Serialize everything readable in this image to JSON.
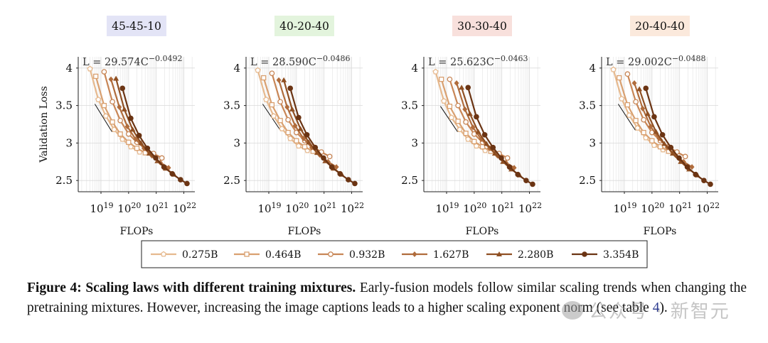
{
  "chart_data": {
    "type": "line",
    "xlabel": "FLOPs",
    "ylabel": "Validation Loss",
    "xscale": "log",
    "xlim": [
      1.5e+18,
      2.5e+22
    ],
    "ylim": [
      2.35,
      4.15
    ],
    "xticks": [
      {
        "value": 1e+19,
        "base": "10",
        "exp": "19"
      },
      {
        "value": 1e+20,
        "base": "10",
        "exp": "20"
      },
      {
        "value": 1e+21,
        "base": "10",
        "exp": "21"
      },
      {
        "value": 1e+22,
        "base": "10",
        "exp": "22"
      }
    ],
    "yticks": [
      2.5,
      3,
      3.5,
      4
    ],
    "ytick_labels": [
      "2.5",
      "3",
      "3.5",
      "4"
    ],
    "grid": true,
    "legend": {
      "placement": "bottom-center",
      "entries": [
        {
          "name": "0.275B",
          "color": "#e6b98e",
          "marker": "pentagon"
        },
        {
          "name": "0.464B",
          "color": "#d9a070",
          "marker": "square"
        },
        {
          "name": "0.932B",
          "color": "#c88656",
          "marker": "circle"
        },
        {
          "name": "1.627B",
          "color": "#b06c3c",
          "marker": "diamond"
        },
        {
          "name": "2.280B",
          "color": "#8f4f22",
          "marker": "triangle"
        },
        {
          "name": "3.354B",
          "color": "#6b3413",
          "marker": "dot"
        }
      ]
    },
    "panels": [
      {
        "title": "45-45-10",
        "title_bg": "#e3e4f6",
        "law_prefix": "L = 29.574C",
        "law_exp": "−0.0492",
        "fit": {
          "x": [
            6e+18,
            2.5e+19
          ],
          "y": [
            3.52,
            3.15
          ]
        },
        "series": [
          {
            "x": [
              4e+18,
              8e+18,
              1.5e+19,
              3e+19,
              6e+19,
              1.2e+20,
              2.5e+20
            ],
            "y": [
              3.99,
              3.58,
              3.36,
              3.18,
              3.05,
              2.95,
              2.88
            ]
          },
          {
            "x": [
              6.5e+18,
              1.3e+19,
              2.6e+19,
              5e+19,
              1e+20,
              2e+20,
              4e+20
            ],
            "y": [
              3.89,
              3.5,
              3.28,
              3.12,
              3.01,
              2.93,
              2.87
            ]
          },
          {
            "x": [
              1.3e+19,
              2.6e+19,
              5e+19,
              1e+20,
              2e+20,
              4e+20,
              8e+20,
              1.6e+21
            ],
            "y": [
              3.95,
              3.55,
              3.3,
              3.12,
              3.01,
              2.93,
              2.86,
              2.8
            ]
          },
          {
            "x": [
              2.3e+19,
              4.6e+19,
              9e+19,
              1.8e+20,
              3.6e+20,
              7e+20,
              1.4e+21,
              2.8e+21
            ],
            "y": [
              3.85,
              3.48,
              3.22,
              3.05,
              2.93,
              2.83,
              2.74,
              2.67
            ]
          },
          {
            "x": [
              3.5e+19,
              7e+19,
              1.4e+20,
              2.8e+20,
              5.6e+20,
              1.1e+21,
              2.2e+21,
              4.4e+21
            ],
            "y": [
              3.86,
              3.45,
              3.18,
              3.0,
              2.86,
              2.76,
              2.66,
              2.58
            ]
          },
          {
            "x": [
              6e+19,
              1.2e+20,
              2.4e+20,
              4.8e+20,
              9.6e+20,
              1.9e+21,
              3.8e+21,
              7.6e+21,
              1.3e+22
            ],
            "y": [
              3.73,
              3.33,
              3.1,
              2.93,
              2.8,
              2.68,
              2.59,
              2.51,
              2.46
            ]
          }
        ]
      },
      {
        "title": "40-20-40",
        "title_bg": "#e3f4dd",
        "law_prefix": "L = 28.590C",
        "law_exp": "−0.0486",
        "fit": {
          "x": [
            6e+18,
            2.5e+19
          ],
          "y": [
            3.52,
            3.18
          ]
        },
        "series": [
          {
            "x": [
              4e+18,
              8e+18,
              1.5e+19,
              3e+19,
              6e+19,
              1.2e+20,
              2.5e+20
            ],
            "y": [
              3.97,
              3.58,
              3.36,
              3.19,
              3.06,
              2.96,
              2.9
            ]
          },
          {
            "x": [
              6.5e+18,
              1.3e+19,
              2.6e+19,
              5e+19,
              1e+20,
              2e+20,
              4e+20
            ],
            "y": [
              3.87,
              3.51,
              3.3,
              3.14,
              3.03,
              2.95,
              2.89
            ]
          },
          {
            "x": [
              1.3e+19,
              2.6e+19,
              5e+19,
              1e+20,
              2e+20,
              4e+20,
              8e+20,
              1.6e+21
            ],
            "y": [
              3.93,
              3.55,
              3.31,
              3.14,
              3.03,
              2.95,
              2.88,
              2.82
            ]
          },
          {
            "x": [
              2.3e+19,
              4.6e+19,
              9e+19,
              1.8e+20,
              3.6e+20,
              7e+20,
              1.4e+21,
              2.8e+21
            ],
            "y": [
              3.84,
              3.48,
              3.23,
              3.06,
              2.94,
              2.84,
              2.75,
              2.68
            ]
          },
          {
            "x": [
              3.5e+19,
              7e+19,
              1.4e+20,
              2.8e+20,
              5.6e+20,
              1.1e+21,
              2.2e+21,
              4.4e+21
            ],
            "y": [
              3.84,
              3.45,
              3.19,
              3.01,
              2.87,
              2.76,
              2.66,
              2.58
            ]
          },
          {
            "x": [
              6e+19,
              1.2e+20,
              2.4e+20,
              4.8e+20,
              9.6e+20,
              1.9e+21,
              3.8e+21,
              7.6e+21,
              1.3e+22
            ],
            "y": [
              3.73,
              3.34,
              3.11,
              2.94,
              2.8,
              2.68,
              2.59,
              2.51,
              2.46
            ]
          }
        ]
      },
      {
        "title": "30-30-40",
        "title_bg": "#f8e0dc",
        "law_prefix": "L = 25.623C",
        "law_exp": "−0.0463",
        "fit": {
          "x": [
            6e+18,
            2.5e+19
          ],
          "y": [
            3.49,
            3.15
          ]
        },
        "series": [
          {
            "x": [
              4e+18,
              8e+18,
              1.5e+19,
              3e+19,
              6e+19,
              1.2e+20,
              2.5e+20
            ],
            "y": [
              3.95,
              3.56,
              3.34,
              3.18,
              3.05,
              2.96,
              2.9
            ]
          },
          {
            "x": [
              6.5e+18,
              1.3e+19,
              2.6e+19,
              5e+19,
              1e+20,
              2e+20,
              4e+20
            ],
            "y": [
              3.85,
              3.49,
              3.29,
              3.13,
              3.02,
              2.95,
              2.89
            ]
          },
          {
            "x": [
              1.3e+19,
              2.6e+19,
              5e+19,
              1e+20,
              2e+20,
              4e+20,
              8e+20,
              1.6e+21
            ],
            "y": [
              3.85,
              3.5,
              3.28,
              3.12,
              3.01,
              2.93,
              2.86,
              2.8
            ]
          },
          {
            "x": [
              2.3e+19,
              4.6e+19,
              9e+19,
              1.8e+20,
              3.6e+20,
              7e+20,
              1.4e+21,
              2.8e+21
            ],
            "y": [
              3.8,
              3.45,
              3.21,
              3.05,
              2.93,
              2.83,
              2.74,
              2.67
            ]
          },
          {
            "x": [
              3.5e+19,
              7e+19,
              1.4e+20,
              2.8e+20,
              5.6e+20,
              1.1e+21,
              2.2e+21,
              4.4e+21
            ],
            "y": [
              3.74,
              3.39,
              3.15,
              2.99,
              2.86,
              2.75,
              2.65,
              2.57
            ]
          },
          {
            "x": [
              6e+19,
              1.2e+20,
              2.4e+20,
              4.8e+20,
              9.6e+20,
              1.9e+21,
              3.8e+21,
              7.6e+21,
              1.3e+22
            ],
            "y": [
              3.74,
              3.35,
              3.11,
              2.94,
              2.8,
              2.68,
              2.58,
              2.5,
              2.45
            ]
          }
        ]
      },
      {
        "title": "20-40-40",
        "title_bg": "#fbe9dc",
        "law_prefix": "L = 29.002C",
        "law_exp": "−0.0488",
        "fit": {
          "x": [
            6e+18,
            2.5e+19
          ],
          "y": [
            3.52,
            3.17
          ]
        },
        "series": [
          {
            "x": [
              4e+18,
              8e+18,
              1.5e+19,
              3e+19,
              6e+19,
              1.2e+20,
              2.5e+20
            ],
            "y": [
              3.98,
              3.59,
              3.37,
              3.2,
              3.07,
              2.97,
              2.91
            ]
          },
          {
            "x": [
              6.5e+18,
              1.3e+19,
              2.6e+19,
              5e+19,
              1e+20,
              2e+20,
              4e+20
            ],
            "y": [
              3.87,
              3.51,
              3.3,
              3.14,
              3.03,
              2.95,
              2.89
            ]
          },
          {
            "x": [
              1.3e+19,
              2.6e+19,
              5e+19,
              1e+20,
              2e+20,
              4e+20,
              8e+20,
              1.6e+21
            ],
            "y": [
              3.92,
              3.55,
              3.31,
              3.14,
              3.03,
              2.95,
              2.88,
              2.82
            ]
          },
          {
            "x": [
              2.3e+19,
              4.6e+19,
              9e+19,
              1.8e+20,
              3.6e+20,
              7e+20,
              1.4e+21,
              2.8e+21
            ],
            "y": [
              3.8,
              3.46,
              3.22,
              3.06,
              2.94,
              2.84,
              2.75,
              2.68
            ]
          },
          {
            "x": [
              3.5e+19,
              7e+19,
              1.4e+20,
              2.8e+20,
              5.6e+20,
              1.1e+21,
              2.2e+21,
              4.4e+21
            ],
            "y": [
              3.72,
              3.39,
              3.15,
              2.99,
              2.86,
              2.75,
              2.65,
              2.57
            ]
          },
          {
            "x": [
              6e+19,
              1.2e+20,
              2.4e+20,
              4.8e+20,
              9.6e+20,
              1.9e+21,
              3.8e+21,
              7.6e+21,
              1.3e+22
            ],
            "y": [
              3.73,
              3.35,
              3.11,
              2.94,
              2.8,
              2.68,
              2.58,
              2.5,
              2.45
            ]
          }
        ]
      }
    ]
  },
  "caption": {
    "label": "Figure 4: Scaling laws with different training mixtures.",
    "text_before_ref": " Early-fusion models follow similar scaling trends when changing the pretraining mixtures. However, increasing the image captions leads to a higher scaling exponent norm (see table ",
    "ref": "4",
    "text_after_ref": ")."
  },
  "watermark": {
    "text": "公众号 · 新智元"
  }
}
